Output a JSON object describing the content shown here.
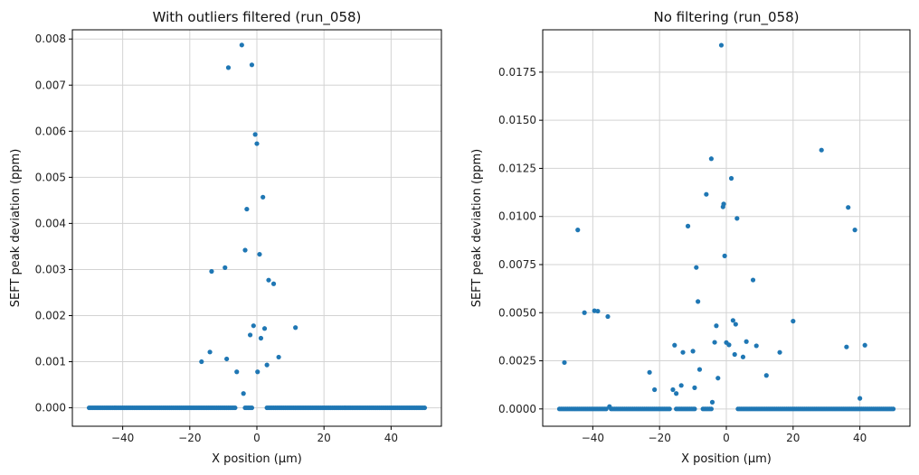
{
  "chart_data": [
    {
      "type": "scatter",
      "title": "With outliers filtered (run_058)",
      "xlabel": "X position (µm)",
      "ylabel": "SEFT peak deviation (ppm)",
      "xlim": [
        -55,
        55
      ],
      "ylim": [
        -0.0004,
        0.0082
      ],
      "xticks": [
        -40,
        -20,
        0,
        20,
        40
      ],
      "xtick_labels": [
        "−40",
        "−20",
        "0",
        "20",
        "40"
      ],
      "yticks": [
        0,
        0.001,
        0.002,
        0.003,
        0.004,
        0.005,
        0.006,
        0.007,
        0.008
      ],
      "ytick_labels": [
        "0.000",
        "0.001",
        "0.002",
        "0.003",
        "0.004",
        "0.005",
        "0.006",
        "0.007",
        "0.008"
      ],
      "grid": true,
      "color": "#1f77b4",
      "baseline_ranges": [
        [
          -50,
          -6.5
        ],
        [
          -3.5,
          -1.5
        ],
        [
          3,
          50
        ]
      ],
      "baseline_y": 0,
      "points": [
        {
          "x": -16.5,
          "y": 0.001
        },
        {
          "x": -14.0,
          "y": 0.00121
        },
        {
          "x": -13.5,
          "y": 0.00296
        },
        {
          "x": -9.5,
          "y": 0.00304
        },
        {
          "x": -9.0,
          "y": 0.00106
        },
        {
          "x": -8.5,
          "y": 0.00738
        },
        {
          "x": -6.0,
          "y": 0.00078
        },
        {
          "x": -4.5,
          "y": 0.00787
        },
        {
          "x": -4.0,
          "y": 0.00031
        },
        {
          "x": -3.5,
          "y": 0.00342
        },
        {
          "x": -3.0,
          "y": 0.00431
        },
        {
          "x": -2.0,
          "y": 0.00158
        },
        {
          "x": -1.5,
          "y": 0.00744
        },
        {
          "x": -1.0,
          "y": 0.00178
        },
        {
          "x": -0.5,
          "y": 0.00593
        },
        {
          "x": 0.0,
          "y": 0.00573
        },
        {
          "x": 0.2,
          "y": 0.00078
        },
        {
          "x": 0.8,
          "y": 0.00333
        },
        {
          "x": 1.2,
          "y": 0.00151
        },
        {
          "x": 1.8,
          "y": 0.00457
        },
        {
          "x": 2.3,
          "y": 0.00172
        },
        {
          "x": 3.0,
          "y": 0.00093
        },
        {
          "x": 3.5,
          "y": 0.00277
        },
        {
          "x": 5.0,
          "y": 0.00269
        },
        {
          "x": 6.5,
          "y": 0.0011
        },
        {
          "x": 11.5,
          "y": 0.00174
        }
      ]
    },
    {
      "type": "scatter",
      "title": "No filtering (run_058)",
      "xlabel": "X position (µm)",
      "ylabel": "SEFT peak deviation (ppm)",
      "xlim": [
        -55,
        55
      ],
      "ylim": [
        -0.0009,
        0.0197
      ],
      "xticks": [
        -40,
        -20,
        0,
        20,
        40
      ],
      "xtick_labels": [
        "−40",
        "−20",
        "0",
        "20",
        "40"
      ],
      "yticks": [
        0,
        0.0025,
        0.005,
        0.0075,
        0.01,
        0.0125,
        0.015,
        0.0175
      ],
      "ytick_labels": [
        "0.0000",
        "0.0025",
        "0.0050",
        "0.0075",
        "0.0100",
        "0.0125",
        "0.0150",
        "0.0175"
      ],
      "grid": true,
      "color": "#1f77b4",
      "baseline_ranges": [
        [
          -50,
          -36
        ],
        [
          -34.5,
          -17
        ],
        [
          -15,
          -9.5
        ],
        [
          -7,
          -4.5
        ],
        [
          3.5,
          50
        ]
      ],
      "baseline_y": 0,
      "points": [
        {
          "x": -48.5,
          "y": 0.00241
        },
        {
          "x": -44.5,
          "y": 0.0093
        },
        {
          "x": -42.5,
          "y": 0.005
        },
        {
          "x": -39.5,
          "y": 0.0051
        },
        {
          "x": -38.5,
          "y": 0.00508
        },
        {
          "x": -35.5,
          "y": 0.0048
        },
        {
          "x": -35.0,
          "y": 0.00012
        },
        {
          "x": -23.0,
          "y": 0.0019
        },
        {
          "x": -21.5,
          "y": 0.001
        },
        {
          "x": -16.0,
          "y": 0.001
        },
        {
          "x": -15.5,
          "y": 0.00331
        },
        {
          "x": -15.0,
          "y": 0.0008
        },
        {
          "x": -13.5,
          "y": 0.00122
        },
        {
          "x": -13.0,
          "y": 0.00294
        },
        {
          "x": -11.5,
          "y": 0.0095
        },
        {
          "x": -10.0,
          "y": 0.003
        },
        {
          "x": -9.5,
          "y": 0.0011
        },
        {
          "x": -9.0,
          "y": 0.00735
        },
        {
          "x": -8.5,
          "y": 0.00558
        },
        {
          "x": -8.0,
          "y": 0.00205
        },
        {
          "x": -6.0,
          "y": 0.01115
        },
        {
          "x": -4.5,
          "y": 0.013
        },
        {
          "x": -4.2,
          "y": 0.00035
        },
        {
          "x": -3.5,
          "y": 0.00346
        },
        {
          "x": -3.0,
          "y": 0.00432
        },
        {
          "x": -2.5,
          "y": 0.0016
        },
        {
          "x": -1.5,
          "y": 0.0189
        },
        {
          "x": -1.0,
          "y": 0.0105
        },
        {
          "x": -0.8,
          "y": 0.01065
        },
        {
          "x": -0.5,
          "y": 0.00795
        },
        {
          "x": 0.0,
          "y": 0.00345
        },
        {
          "x": 0.8,
          "y": 0.00333
        },
        {
          "x": 1.5,
          "y": 0.01198
        },
        {
          "x": 2.0,
          "y": 0.0046
        },
        {
          "x": 2.5,
          "y": 0.00283
        },
        {
          "x": 2.8,
          "y": 0.0044
        },
        {
          "x": 3.2,
          "y": 0.0099
        },
        {
          "x": 5.0,
          "y": 0.0027
        },
        {
          "x": 6.0,
          "y": 0.0035
        },
        {
          "x": 8.0,
          "y": 0.0067
        },
        {
          "x": 9.0,
          "y": 0.00328
        },
        {
          "x": 12.0,
          "y": 0.00174
        },
        {
          "x": 16.0,
          "y": 0.00294
        },
        {
          "x": 20.0,
          "y": 0.00456
        },
        {
          "x": 28.5,
          "y": 0.01345
        },
        {
          "x": 36.0,
          "y": 0.00322
        },
        {
          "x": 36.5,
          "y": 0.01047
        },
        {
          "x": 38.5,
          "y": 0.0093
        },
        {
          "x": 40.0,
          "y": 0.00055
        },
        {
          "x": 41.5,
          "y": 0.00331
        }
      ]
    }
  ]
}
